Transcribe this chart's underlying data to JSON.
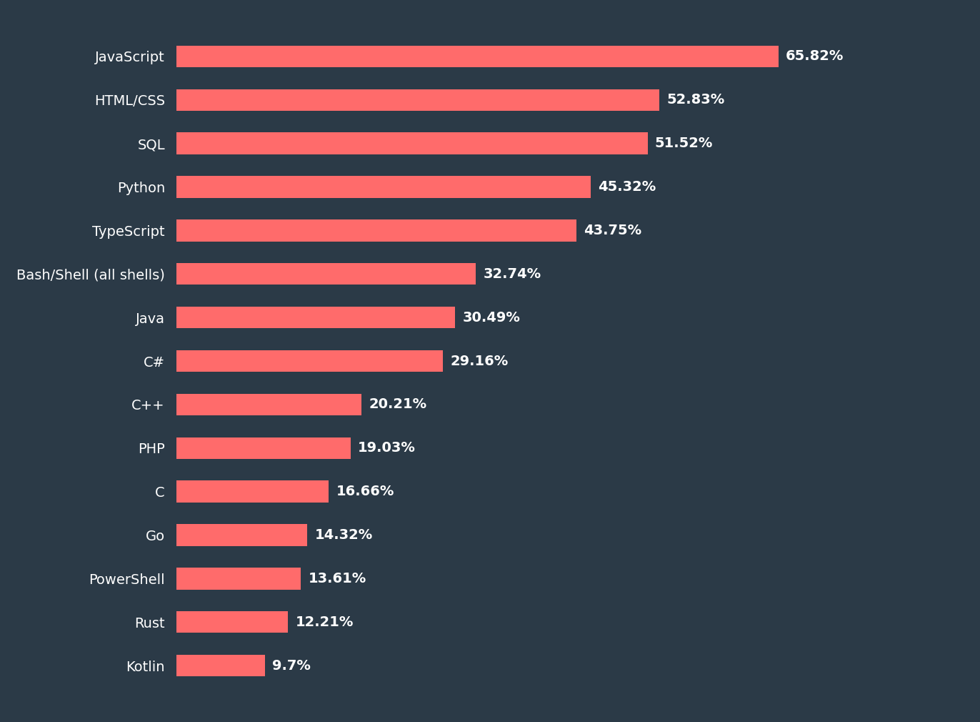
{
  "categories": [
    "JavaScript",
    "HTML/CSS",
    "SQL",
    "Python",
    "TypeScript",
    "Bash/Shell (all shells)",
    "Java",
    "C#",
    "C++",
    "PHP",
    "C",
    "Go",
    "PowerShell",
    "Rust",
    "Kotlin"
  ],
  "values": [
    65.82,
    52.83,
    51.52,
    45.32,
    43.75,
    32.74,
    30.49,
    29.16,
    20.21,
    19.03,
    16.66,
    14.32,
    13.61,
    12.21,
    9.7
  ],
  "labels": [
    "65.82%",
    "52.83%",
    "51.52%",
    "45.32%",
    "43.75%",
    "32.74%",
    "30.49%",
    "29.16%",
    "20.21%",
    "19.03%",
    "16.66%",
    "14.32%",
    "13.61%",
    "12.21%",
    "9.7%"
  ],
  "bar_color": "#FF6B6B",
  "background_color": "#2B3A47",
  "text_color": "#FFFFFF",
  "label_fontsize": 14,
  "tick_fontsize": 14,
  "bar_height": 0.5,
  "xlim": [
    0,
    75
  ],
  "figsize": [
    13.72,
    10.1
  ],
  "dpi": 100
}
